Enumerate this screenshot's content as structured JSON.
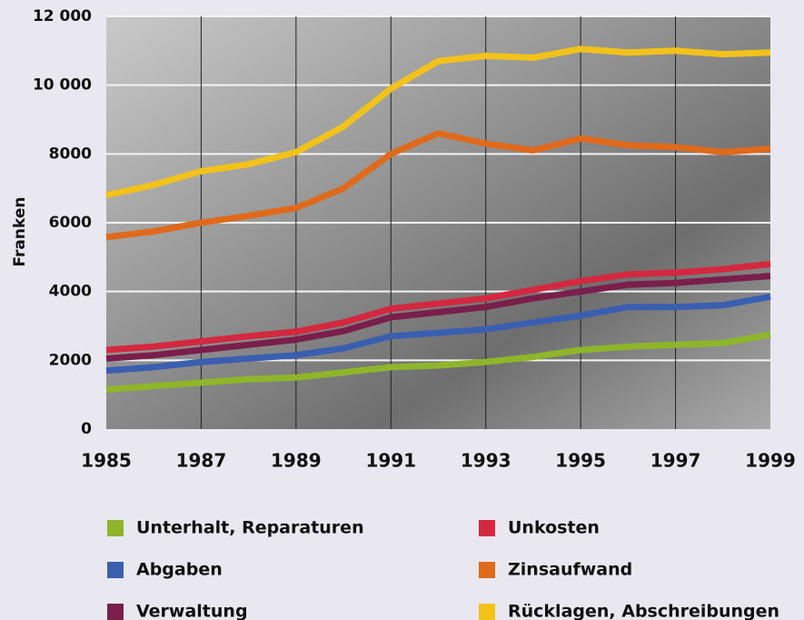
{
  "chart_data": {
    "type": "line",
    "y_label": "Franken",
    "x": [
      1985,
      1986,
      1987,
      1988,
      1989,
      1990,
      1991,
      1992,
      1993,
      1994,
      1995,
      1996,
      1997,
      1998,
      1999
    ],
    "xlim": [
      1985,
      1999
    ],
    "xticks": [
      1985,
      1987,
      1989,
      1991,
      1993,
      1995,
      1997,
      1999
    ],
    "ylim": [
      0,
      12000
    ],
    "yticks": [
      0,
      2000,
      4000,
      6000,
      8000,
      {
        "value": 10000,
        "label": "10 000"
      },
      {
        "value": 12000,
        "label": "12 000"
      }
    ],
    "grid": true,
    "series": [
      {
        "name": "Unterhalt, Reparaturen",
        "color": "#8fb52a",
        "values": [
          1150,
          1250,
          1350,
          1450,
          1500,
          1650,
          1800,
          1850,
          1950,
          2100,
          2300,
          2400,
          2450,
          2500,
          2750
        ]
      },
      {
        "name": "Abgaben",
        "color": "#3a5fb0",
        "values": [
          1700,
          1800,
          1950,
          2050,
          2150,
          2350,
          2700,
          2800,
          2900,
          3100,
          3300,
          3550,
          3550,
          3600,
          3850
        ]
      },
      {
        "name": "Verwaltung",
        "color": "#7a1f4c",
        "values": [
          2050,
          2150,
          2300,
          2450,
          2600,
          2850,
          3250,
          3400,
          3550,
          3800,
          4000,
          4200,
          4250,
          4350,
          4450
        ]
      },
      {
        "name": "Unkosten",
        "color": "#d3283f",
        "values": [
          2300,
          2400,
          2550,
          2700,
          2830,
          3100,
          3500,
          3650,
          3800,
          4050,
          4300,
          4500,
          4550,
          4650,
          4800
        ]
      },
      {
        "name": "Zinsaufwand",
        "color": "#e06a1c",
        "values": [
          5580,
          5750,
          6000,
          6200,
          6430,
          7000,
          8000,
          8600,
          8300,
          8100,
          8450,
          8250,
          8200,
          8050,
          8150
        ]
      },
      {
        "name": "Rücklagen, Abschreibungen",
        "color": "#f2c21a",
        "values": [
          6800,
          7100,
          7500,
          7700,
          8050,
          8800,
          9900,
          10700,
          10850,
          10800,
          11050,
          10950,
          11000,
          10900,
          10950
        ]
      }
    ]
  }
}
